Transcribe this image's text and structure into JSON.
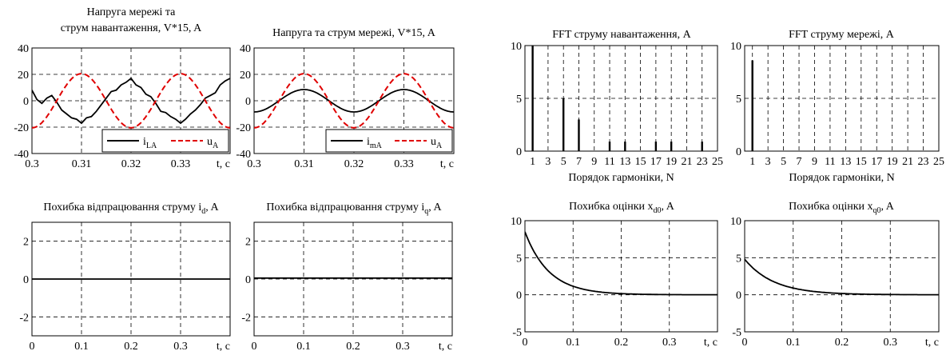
{
  "chart_data": [
    {
      "id": "p1",
      "type": "line",
      "title_lines": [
        "Напруга мережі та",
        "струм навантаження, V*15, A"
      ],
      "xlim": [
        0.3,
        0.34
      ],
      "ylim": [
        -40,
        40
      ],
      "xticks": [
        0.3,
        0.31,
        0.32,
        0.33
      ],
      "xtick_labels": [
        "0.3",
        "0.31",
        "0.32",
        "0.33"
      ],
      "yticks": [
        -40,
        -20,
        0,
        20,
        40
      ],
      "ytick_labels": [
        "-40",
        "-20",
        "0",
        "20",
        "40"
      ],
      "xunit": "t, c",
      "grid": true,
      "legend_position": "bottom-right",
      "series": [
        {
          "name": "i",
          "sub": "LA",
          "color": "#000000",
          "dash": "solid",
          "x": [
            0.3,
            0.301,
            0.302,
            0.303,
            0.304,
            0.305,
            0.306,
            0.307,
            0.308,
            0.309,
            0.31,
            0.311,
            0.312,
            0.313,
            0.314,
            0.315,
            0.316,
            0.317,
            0.318,
            0.319,
            0.32,
            0.321,
            0.322,
            0.323,
            0.324,
            0.325,
            0.326,
            0.327,
            0.328,
            0.329,
            0.33,
            0.331,
            0.332,
            0.333,
            0.334,
            0.335,
            0.336,
            0.337,
            0.338,
            0.339,
            0.34
          ],
          "y": [
            8,
            1,
            -2,
            2,
            4,
            -1,
            -7,
            -10,
            -13,
            -14,
            -17,
            -13,
            -12,
            -8,
            -3,
            2,
            7,
            8,
            12,
            14,
            17,
            12,
            10,
            5,
            3,
            -2,
            -8,
            -9,
            -12,
            -14,
            -17,
            -14,
            -10,
            -7,
            -3,
            2,
            4,
            6,
            12,
            15,
            17
          ]
        },
        {
          "name": "u",
          "sub": "A",
          "color": "#e00000",
          "dash": "dashed",
          "fn": "sin",
          "amp": 20.5,
          "phase_x": 0.305,
          "period": 0.02
        }
      ]
    },
    {
      "id": "p2",
      "type": "line",
      "title_lines": [
        "Напруга та струм мережі, V*15, A"
      ],
      "xlim": [
        0.3,
        0.34
      ],
      "ylim": [
        -40,
        40
      ],
      "xticks": [
        0.3,
        0.31,
        0.32,
        0.33
      ],
      "xtick_labels": [
        "0.3",
        "0.31",
        "0.32",
        "0.33"
      ],
      "yticks": [
        -40,
        -20,
        0,
        20,
        40
      ],
      "ytick_labels": [
        "-40",
        "-20",
        "0",
        "20",
        "40"
      ],
      "xunit": "t, c",
      "grid": true,
      "legend_position": "bottom-right",
      "series": [
        {
          "name": "i",
          "sub": "mA",
          "color": "#000000",
          "dash": "solid",
          "fn": "sin",
          "amp": 8.5,
          "phase_x": 0.305,
          "period": 0.02
        },
        {
          "name": "u",
          "sub": "A",
          "color": "#e00000",
          "dash": "dashed",
          "fn": "sin",
          "amp": 20.5,
          "phase_x": 0.305,
          "period": 0.02
        }
      ]
    },
    {
      "id": "p3",
      "type": "bar",
      "title_lines": [
        "FFT струму навантаження, A"
      ],
      "xlim": [
        0,
        25
      ],
      "ylim": [
        0,
        10
      ],
      "xticks": [
        1,
        3,
        5,
        7,
        9,
        11,
        13,
        15,
        17,
        19,
        21,
        23,
        25
      ],
      "xtick_labels": [
        "1",
        "3",
        "5",
        "7",
        "9",
        "11",
        "13",
        "15",
        "17",
        "19",
        "21",
        "23",
        "25"
      ],
      "yticks": [
        0,
        5,
        10
      ],
      "ytick_labels": [
        "0",
        "5",
        "10"
      ],
      "xlabel": "Порядок гармоніки, N",
      "grid": true,
      "harmonics": [
        1,
        5,
        7,
        11,
        13,
        17,
        19,
        23
      ],
      "values": [
        10,
        5,
        3,
        0.9,
        0.9,
        0.9,
        0.9,
        0.9
      ]
    },
    {
      "id": "p4",
      "type": "bar",
      "title_lines": [
        "FFT струму мережі, A"
      ],
      "xlim": [
        0,
        25
      ],
      "ylim": [
        0,
        10
      ],
      "xticks": [
        1,
        3,
        5,
        7,
        9,
        11,
        13,
        15,
        17,
        19,
        21,
        23,
        25
      ],
      "xtick_labels": [
        "1",
        "3",
        "5",
        "7",
        "9",
        "11",
        "13",
        "15",
        "17",
        "19",
        "21",
        "23",
        "25"
      ],
      "yticks": [
        0,
        5,
        10
      ],
      "ytick_labels": [
        "0",
        "5",
        "10"
      ],
      "xlabel": "Порядок гармоніки, N",
      "grid": true,
      "harmonics": [
        1
      ],
      "values": [
        8.6
      ]
    },
    {
      "id": "p5",
      "type": "line",
      "title_main": "Похибка відпрацювання струму i",
      "title_sub": "d",
      "title_end": ", A",
      "xlim": [
        0,
        0.4
      ],
      "ylim": [
        -3,
        3
      ],
      "xticks": [
        0,
        0.1,
        0.2,
        0.3
      ],
      "xtick_labels": [
        "0",
        "0.1",
        "0.2",
        "0.3"
      ],
      "yticks": [
        -2,
        0,
        2
      ],
      "ytick_labels": [
        "-2",
        "0",
        "2"
      ],
      "xunit": "t, c",
      "grid": true,
      "series": [
        {
          "color": "#000000",
          "x": [
            0,
            0.4
          ],
          "y": [
            0,
            0
          ]
        }
      ]
    },
    {
      "id": "p6",
      "type": "line",
      "title_main": "Похибка відпрацювання струму i",
      "title_sub": "q",
      "title_end": ", A",
      "xlim": [
        0,
        0.4
      ],
      "ylim": [
        -3,
        3
      ],
      "xticks": [
        0,
        0.1,
        0.2,
        0.3
      ],
      "xtick_labels": [
        "0",
        "0.1",
        "0.2",
        "0.3"
      ],
      "yticks": [
        -2,
        0,
        2
      ],
      "ytick_labels": [
        "-2",
        "0",
        "2"
      ],
      "xunit": "t, c",
      "grid": true,
      "series": [
        {
          "color": "#000000",
          "x": [
            0,
            0.4
          ],
          "y": [
            0.05,
            0.05
          ]
        }
      ]
    },
    {
      "id": "p7",
      "type": "line",
      "title_main": "Похибка оцінки x",
      "title_sub": "d0",
      "title_end": ", A",
      "xlim": [
        0,
        0.4
      ],
      "ylim": [
        -5,
        10
      ],
      "xticks": [
        0,
        0.1,
        0.2,
        0.3
      ],
      "xtick_labels": [
        "0",
        "0.1",
        "0.2",
        "0.3"
      ],
      "yticks": [
        -5,
        0,
        5,
        10
      ],
      "ytick_labels": [
        "-5",
        "0",
        "5",
        "10"
      ],
      "xunit": "t, c",
      "grid": true,
      "series": [
        {
          "color": "#000000",
          "fn": "exp",
          "start": 8.5,
          "tau": 0.05
        }
      ]
    },
    {
      "id": "p8",
      "type": "line",
      "title_main": "Похибка оцінки x",
      "title_sub": "q0",
      "title_end": ", A",
      "xlim": [
        0,
        0.4
      ],
      "ylim": [
        -5,
        10
      ],
      "xticks": [
        0,
        0.1,
        0.2,
        0.3
      ],
      "xtick_labels": [
        "0",
        "0.1",
        "0.2",
        "0.3"
      ],
      "yticks": [
        -5,
        0,
        5,
        10
      ],
      "ytick_labels": [
        "-5",
        "0",
        "5",
        "10"
      ],
      "xunit": "t, c",
      "grid": true,
      "series": [
        {
          "color": "#000000",
          "fn": "exp",
          "start": 4.8,
          "tau": 0.06
        }
      ]
    }
  ]
}
